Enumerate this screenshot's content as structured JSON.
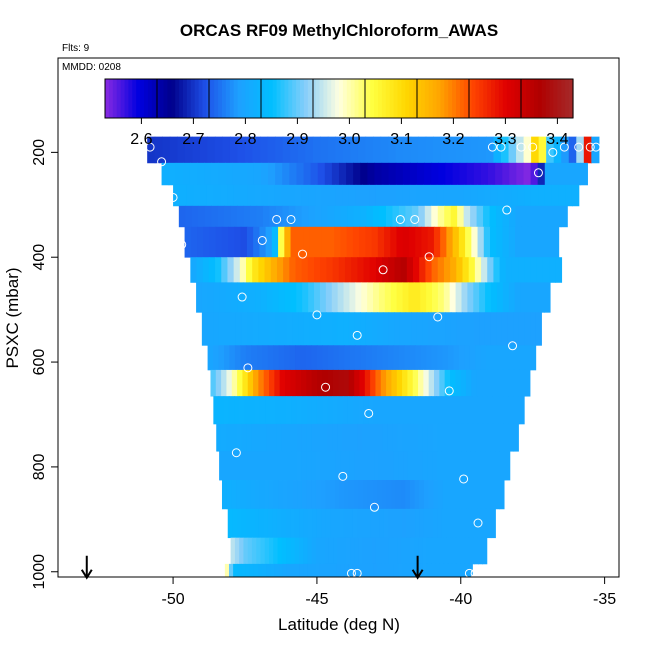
{
  "chart_data": {
    "type": "heatmap",
    "title": "ORCAS RF09 MethylChloroform_AWAS",
    "flights_note": "Flts: 9",
    "date_note": "MMDD: 0208",
    "xlabel": "Latitude (deg N)",
    "ylabel": "PSXC (mbar)",
    "xlim": [
      -54.0,
      -34.5
    ],
    "ylim": [
      1010,
      20
    ],
    "x_ticks": [
      -50,
      -45,
      -40,
      -35
    ],
    "x_tick_labels": [
      "-50",
      "-45",
      "-40",
      "-35"
    ],
    "y_ticks": [
      200,
      400,
      600,
      800,
      1000
    ],
    "y_tick_labels": [
      "200",
      "400",
      "600",
      "800",
      "1000"
    ],
    "colorbar": {
      "min": 2.53,
      "max": 3.43,
      "ticks": [
        2.6,
        2.7,
        2.8,
        2.9,
        3.0,
        3.1,
        3.2,
        3.3,
        3.4
      ],
      "tick_labels": [
        "2.6",
        "2.7",
        "2.8",
        "2.9",
        "3.0",
        "3.1",
        "3.2",
        "3.3",
        "3.4"
      ],
      "colors": [
        "#8a2be2",
        "#0000e0",
        "#00008b",
        "#1e50e8",
        "#1ea0ff",
        "#00bfff",
        "#87cefa",
        "#ffffe0",
        "#ffff40",
        "#ffd700",
        "#ffa500",
        "#ff4500",
        "#e00000",
        "#b00000",
        "#a52a2a"
      ]
    },
    "bands": [
      {
        "p_top": 170,
        "p_bot": 220,
        "lat_min": -50.9,
        "lat_max": -35.2,
        "segments": [
          [
            -50.9,
            2.7
          ],
          [
            -48,
            2.72
          ],
          [
            -45,
            2.75
          ],
          [
            -42,
            2.77
          ],
          [
            -39,
            2.78
          ],
          [
            -37.6,
            3.0
          ],
          [
            -37.3,
            3.18
          ],
          [
            -37.0,
            2.9
          ],
          [
            -36.6,
            2.82
          ],
          [
            -36.0,
            2.72
          ],
          [
            -35.6,
            3.3
          ],
          [
            -35.4,
            2.8
          ]
        ]
      },
      {
        "p_top": 220,
        "p_bot": 262,
        "lat_min": -50.4,
        "lat_max": -35.6,
        "segments": [
          [
            -50.4,
            2.82
          ],
          [
            -47,
            2.8
          ],
          [
            -45,
            2.73
          ],
          [
            -43,
            2.64
          ],
          [
            -41,
            2.6
          ],
          [
            -39,
            2.57
          ],
          [
            -37.5,
            2.53
          ],
          [
            -37.0,
            2.8
          ]
        ]
      },
      {
        "p_top": 262,
        "p_bot": 302,
        "lat_min": -50.0,
        "lat_max": -35.9,
        "segments": [
          [
            -50.0,
            2.82
          ],
          [
            -46,
            2.8
          ],
          [
            -43,
            2.79
          ],
          [
            -40,
            2.8
          ],
          [
            -37.5,
            2.82
          ]
        ]
      },
      {
        "p_top": 302,
        "p_bot": 342,
        "lat_min": -49.8,
        "lat_max": -36.3,
        "segments": [
          [
            -49.8,
            2.74
          ],
          [
            -47,
            2.76
          ],
          [
            -45.8,
            2.78
          ],
          [
            -43.5,
            2.82
          ],
          [
            -41.5,
            2.9
          ],
          [
            -40.8,
            3.0
          ],
          [
            -40.2,
            3.06
          ],
          [
            -39.8,
            2.95
          ],
          [
            -39.0,
            2.85
          ],
          [
            -38.0,
            2.8
          ]
        ]
      },
      {
        "p_top": 342,
        "p_bot": 400,
        "lat_min": -49.6,
        "lat_max": -36.6,
        "segments": [
          [
            -49.6,
            2.74
          ],
          [
            -47.5,
            2.72
          ],
          [
            -46.5,
            2.8
          ],
          [
            -46.2,
            3.08
          ],
          [
            -45.9,
            3.22
          ],
          [
            -44.5,
            3.22
          ],
          [
            -43.0,
            3.25
          ],
          [
            -42.0,
            3.31
          ],
          [
            -41.0,
            3.28
          ],
          [
            -40.5,
            3.2
          ],
          [
            -40.0,
            3.1
          ],
          [
            -39.5,
            2.98
          ],
          [
            -39.0,
            2.85
          ],
          [
            -38.0,
            2.8
          ]
        ]
      },
      {
        "p_top": 400,
        "p_bot": 448,
        "lat_min": -49.4,
        "lat_max": -36.5,
        "segments": [
          [
            -49.4,
            2.8
          ],
          [
            -48.5,
            2.85
          ],
          [
            -47.8,
            2.95
          ],
          [
            -47.2,
            3.08
          ],
          [
            -46.5,
            3.16
          ],
          [
            -45.8,
            3.22
          ],
          [
            -44.5,
            3.25
          ],
          [
            -43.0,
            3.3
          ],
          [
            -42.0,
            3.36
          ],
          [
            -41.0,
            3.22
          ],
          [
            -40.2,
            3.16
          ],
          [
            -39.6,
            3.05
          ],
          [
            -39.1,
            2.93
          ],
          [
            -38.5,
            2.82
          ]
        ]
      },
      {
        "p_top": 448,
        "p_bot": 505,
        "lat_min": -49.2,
        "lat_max": -36.9,
        "segments": [
          [
            -49.2,
            2.8
          ],
          [
            -47.0,
            2.82
          ],
          [
            -45.5,
            2.86
          ],
          [
            -44.0,
            2.95
          ],
          [
            -42.8,
            3.02
          ],
          [
            -41.6,
            3.08
          ],
          [
            -40.6,
            3.02
          ],
          [
            -39.8,
            2.92
          ],
          [
            -39.0,
            2.85
          ],
          [
            -38.0,
            2.8
          ]
        ]
      },
      {
        "p_top": 505,
        "p_bot": 568,
        "lat_min": -49.0,
        "lat_max": -37.2,
        "segments": [
          [
            -49.0,
            2.8
          ],
          [
            -47.0,
            2.81
          ],
          [
            -44.0,
            2.82
          ],
          [
            -42.0,
            2.8
          ],
          [
            -39.5,
            2.79
          ]
        ]
      },
      {
        "p_top": 568,
        "p_bot": 615,
        "lat_min": -48.8,
        "lat_max": -37.4,
        "segments": [
          [
            -48.8,
            2.8
          ],
          [
            -47.5,
            2.76
          ],
          [
            -45.5,
            2.74
          ],
          [
            -43.0,
            2.76
          ],
          [
            -40.5,
            2.78
          ],
          [
            -39.0,
            2.8
          ]
        ]
      },
      {
        "p_top": 615,
        "p_bot": 665,
        "lat_min": -48.7,
        "lat_max": -37.6,
        "segments": [
          [
            -48.7,
            2.88
          ],
          [
            -48.1,
            2.96
          ],
          [
            -47.6,
            3.06
          ],
          [
            -47.1,
            3.18
          ],
          [
            -46.2,
            3.3
          ],
          [
            -45.0,
            3.36
          ],
          [
            -44.0,
            3.38
          ],
          [
            -43.4,
            3.3
          ],
          [
            -42.8,
            3.2
          ],
          [
            -42.2,
            3.12
          ],
          [
            -41.6,
            3.04
          ],
          [
            -41.0,
            2.94
          ],
          [
            -40.4,
            2.85
          ],
          [
            -39.5,
            2.8
          ]
        ]
      },
      {
        "p_top": 665,
        "p_bot": 718,
        "lat_min": -48.6,
        "lat_max": -37.8,
        "segments": [
          [
            -48.6,
            2.83
          ],
          [
            -46.0,
            2.82
          ],
          [
            -43.0,
            2.8
          ],
          [
            -40.5,
            2.8
          ]
        ]
      },
      {
        "p_top": 718,
        "p_bot": 770,
        "lat_min": -48.5,
        "lat_max": -38.0,
        "segments": [
          [
            -48.5,
            2.81
          ],
          [
            -46.0,
            2.8
          ],
          [
            -43.5,
            2.79
          ],
          [
            -40.5,
            2.8
          ]
        ]
      },
      {
        "p_top": 770,
        "p_bot": 825,
        "lat_min": -48.4,
        "lat_max": -38.3,
        "segments": [
          [
            -48.4,
            2.8
          ],
          [
            -46.0,
            2.8
          ],
          [
            -43.0,
            2.79
          ],
          [
            -40.5,
            2.8
          ]
        ]
      },
      {
        "p_top": 825,
        "p_bot": 880,
        "lat_min": -48.3,
        "lat_max": -38.5,
        "segments": [
          [
            -48.3,
            2.82
          ],
          [
            -46.5,
            2.8
          ],
          [
            -44.0,
            2.78
          ],
          [
            -42.0,
            2.77
          ],
          [
            -40.5,
            2.8
          ]
        ]
      },
      {
        "p_top": 880,
        "p_bot": 935,
        "lat_min": -48.1,
        "lat_max": -38.8,
        "segments": [
          [
            -48.1,
            2.84
          ],
          [
            -46.5,
            2.82
          ],
          [
            -44.5,
            2.8
          ],
          [
            -42.0,
            2.79
          ],
          [
            -40.5,
            2.8
          ]
        ]
      },
      {
        "p_top": 935,
        "p_bot": 985,
        "lat_min": -48.0,
        "lat_max": -39.1,
        "segments": [
          [
            -48.0,
            2.95
          ],
          [
            -47.5,
            2.9
          ],
          [
            -46.5,
            2.86
          ],
          [
            -45.0,
            2.8
          ],
          [
            -43.0,
            2.79
          ],
          [
            -41.0,
            2.8
          ]
        ]
      },
      {
        "p_top": 985,
        "p_bot": 1010,
        "lat_min": -48.2,
        "lat_max": -39.6,
        "segments": [
          [
            -48.2,
            3.05
          ],
          [
            -47.9,
            2.84
          ],
          [
            -46.0,
            2.8
          ],
          [
            -43.0,
            2.79
          ],
          [
            -41.0,
            2.8
          ]
        ]
      }
    ],
    "sample_points": [
      {
        "lat": -50.8,
        "p": 190
      },
      {
        "lat": -50.4,
        "p": 218
      },
      {
        "lat": -50.0,
        "p": 286
      },
      {
        "lat": -49.7,
        "p": 376
      },
      {
        "lat": -49.4,
        "p": 485
      },
      {
        "lat": -49.1,
        "p": 617
      },
      {
        "lat": -48.6,
        "p": 777
      },
      {
        "lat": -48.2,
        "p": 967
      },
      {
        "lat": -47.8,
        "p": 773
      },
      {
        "lat": -47.6,
        "p": 476
      },
      {
        "lat": -47.4,
        "p": 611
      },
      {
        "lat": -46.9,
        "p": 368
      },
      {
        "lat": -46.4,
        "p": 328
      },
      {
        "lat": -45.9,
        "p": 328
      },
      {
        "lat": -45.5,
        "p": 394
      },
      {
        "lat": -45.0,
        "p": 510
      },
      {
        "lat": -44.7,
        "p": 648
      },
      {
        "lat": -44.1,
        "p": 818
      },
      {
        "lat": -43.8,
        "p": 1003
      },
      {
        "lat": -43.6,
        "p": 1003
      },
      {
        "lat": -43.6,
        "p": 549
      },
      {
        "lat": -43.2,
        "p": 698
      },
      {
        "lat": -43.0,
        "p": 877
      },
      {
        "lat": -42.7,
        "p": 424
      },
      {
        "lat": -42.1,
        "p": 328
      },
      {
        "lat": -41.6,
        "p": 328
      },
      {
        "lat": -41.1,
        "p": 399
      },
      {
        "lat": -40.8,
        "p": 514
      },
      {
        "lat": -40.4,
        "p": 655
      },
      {
        "lat": -39.9,
        "p": 823
      },
      {
        "lat": -39.7,
        "p": 1003
      },
      {
        "lat": -39.5,
        "p": 1003
      },
      {
        "lat": -39.4,
        "p": 907
      },
      {
        "lat": -38.9,
        "p": 190
      },
      {
        "lat": -38.6,
        "p": 190
      },
      {
        "lat": -38.4,
        "p": 310
      },
      {
        "lat": -38.2,
        "p": 569
      },
      {
        "lat": -37.9,
        "p": 190
      },
      {
        "lat": -37.5,
        "p": 190
      },
      {
        "lat": -37.3,
        "p": 239
      },
      {
        "lat": -36.8,
        "p": 200
      },
      {
        "lat": -36.4,
        "p": 190
      },
      {
        "lat": -35.9,
        "p": 190
      },
      {
        "lat": -35.5,
        "p": 190
      },
      {
        "lat": -35.3,
        "p": 190
      }
    ],
    "arrows": [
      {
        "lat": -53.0,
        "p": 1000
      },
      {
        "lat": -41.5,
        "p": 1000
      }
    ]
  }
}
